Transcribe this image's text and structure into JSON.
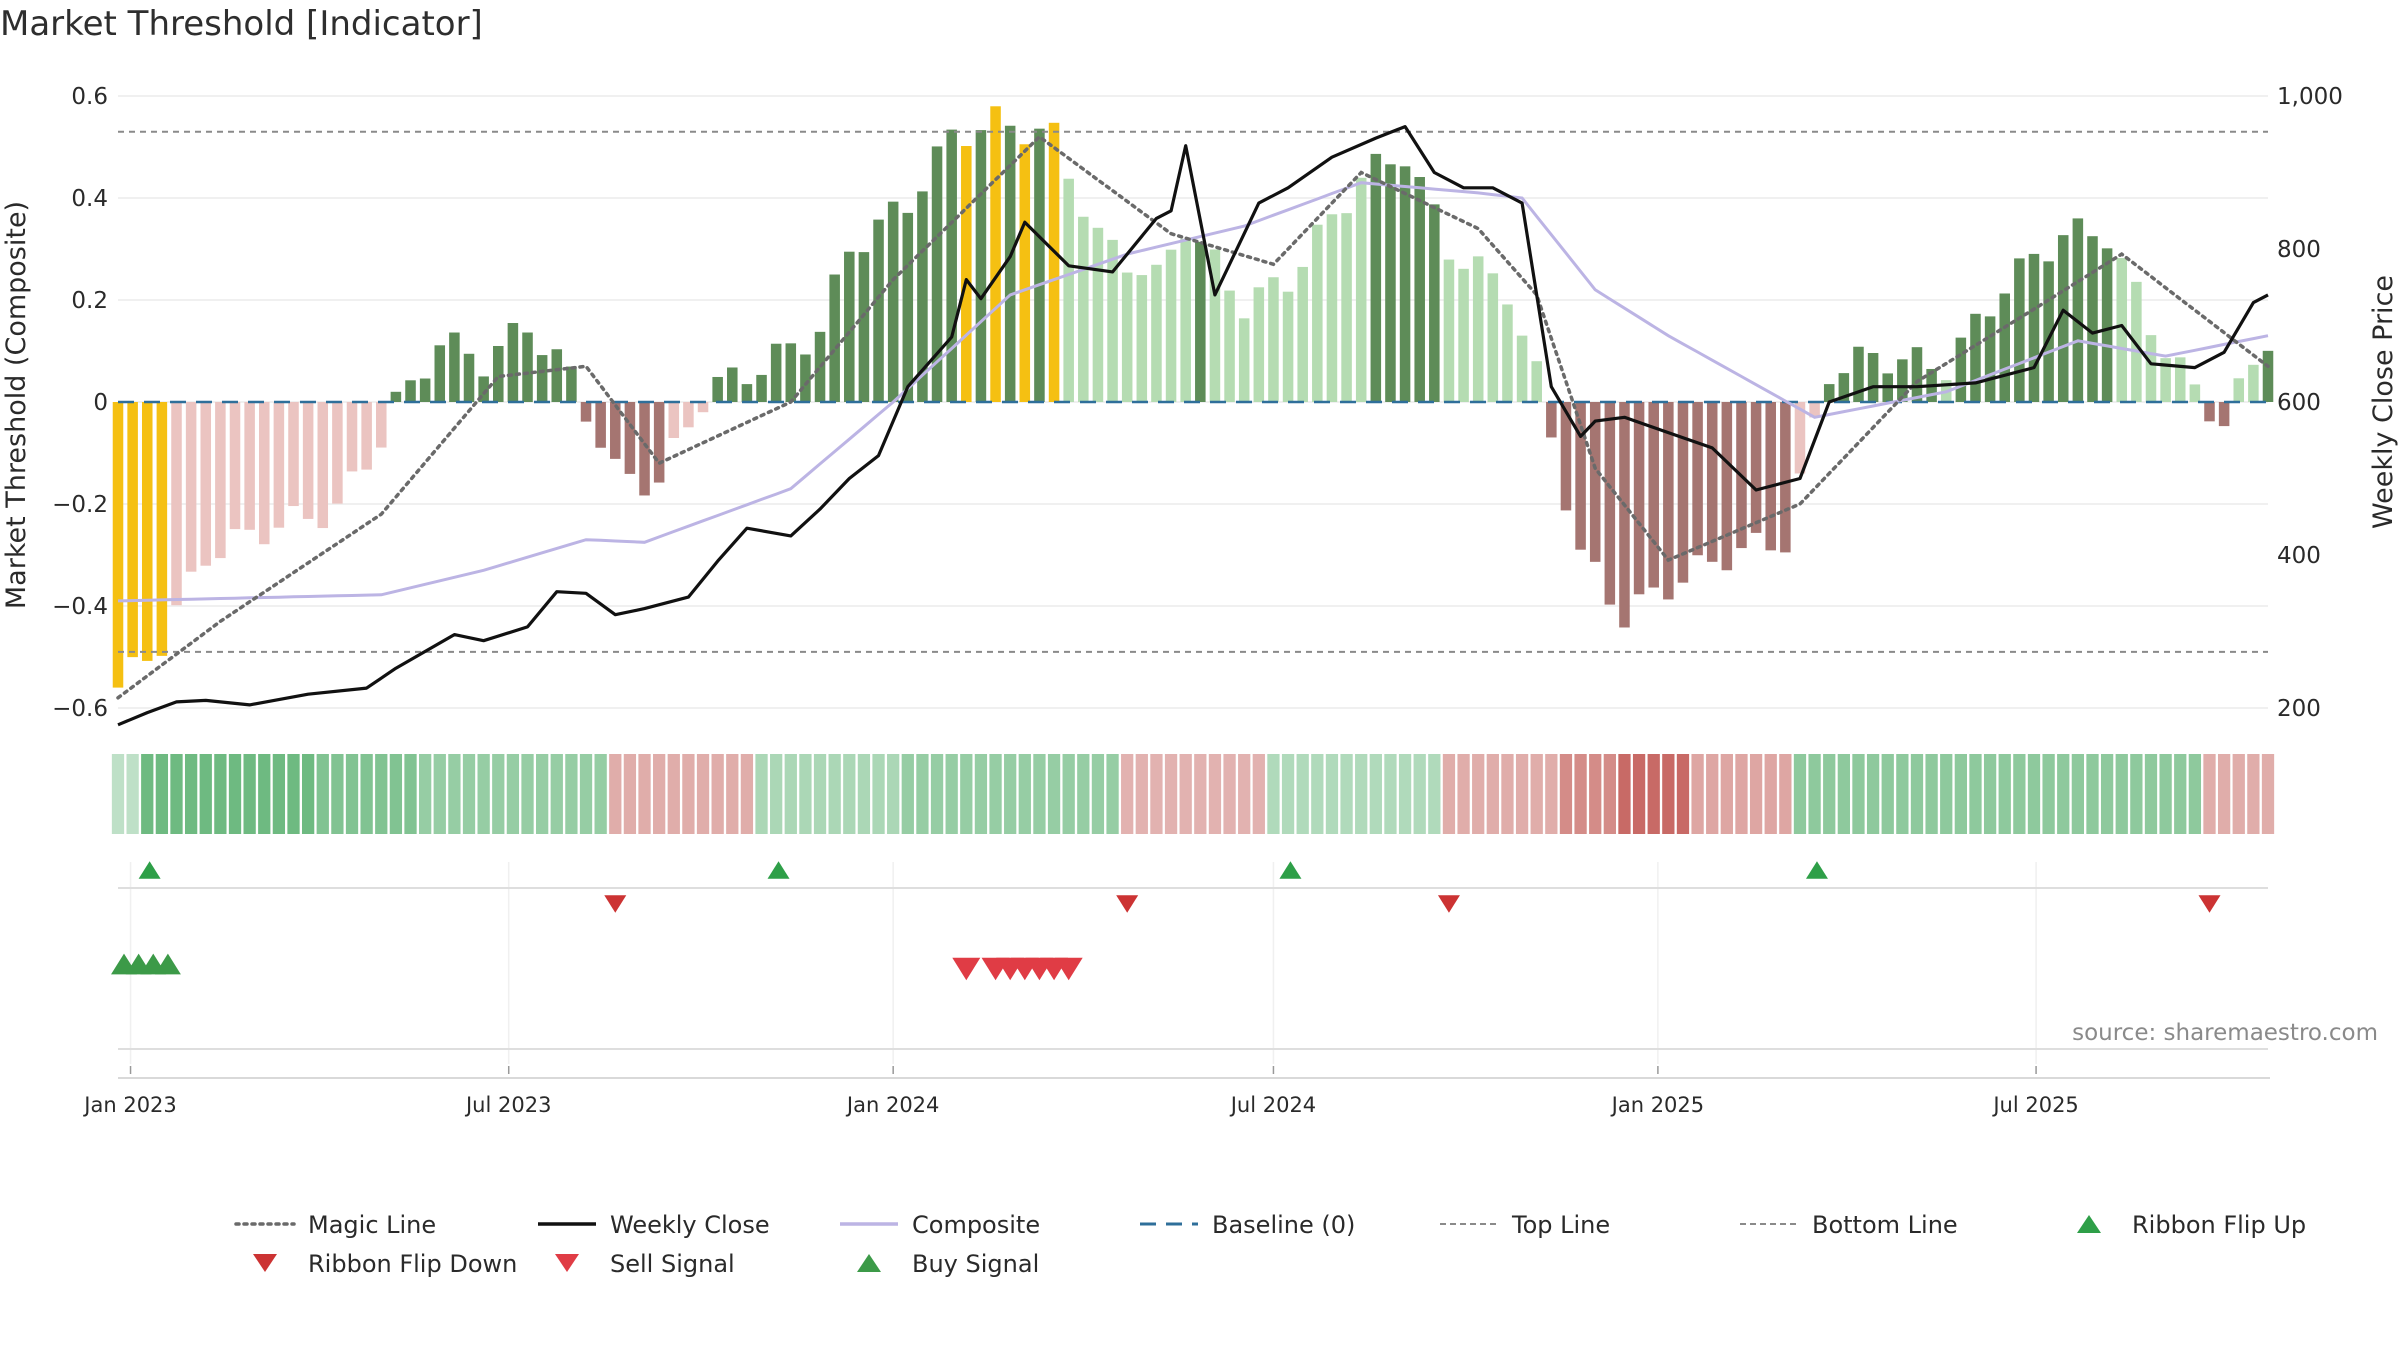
{
  "page": {
    "title": "Market Threshold [Indicator]"
  },
  "chart_data": {
    "type": "bar",
    "title": "Market Threshold [Indicator]",
    "source": "source: sharemaestro.com",
    "ylabel_left": "Market Threshold (Composite)",
    "ylabel_right": "Weekly Close Price",
    "ylim_left": [
      -0.6,
      0.6
    ],
    "ylim_right": [
      200,
      1000
    ],
    "y_ticks_left": [
      "0.6",
      "0.4",
      "0.2",
      "0",
      "−0.2",
      "−0.4",
      "−0.6"
    ],
    "y_ticks_right": [
      "1,000",
      "800",
      "600",
      "400",
      "200"
    ],
    "x_ticks": [
      "Jan 2023",
      "Jul 2023",
      "Jan 2024",
      "Jul 2024",
      "Jan 2025",
      "Jul 2025"
    ],
    "x_range": [
      "2022-12-26",
      "2025-10-20"
    ],
    "grid": true,
    "legend_position": "bottom",
    "colors": {
      "bar_strong_pos": "#5e8c58",
      "bar_weak_pos": "#b5dcb2",
      "bar_strong_neg": "#a57571",
      "bar_weak_neg": "#ebc4c1",
      "extreme": "#f5c012",
      "weekly_close": "#111111",
      "composite": "#bcb4e4",
      "magic_line": "#6a6a6a",
      "baseline": "#2f6f9a",
      "threshold_lines": "#8a8a8a",
      "ribbon_flip_up": "#2e9f48",
      "ribbon_flip_down": "#cc3333",
      "sell_signal": "#e03c45",
      "buy_signal": "#3c9a48"
    },
    "threshold_lines": {
      "top": 0.53,
      "bottom": -0.49,
      "baseline": 0
    },
    "legend": [
      {
        "label": "Magic Line",
        "style": "dotted",
        "color": "#6a6a6a"
      },
      {
        "label": "Weekly Close",
        "style": "solid",
        "color": "#111111"
      },
      {
        "label": "Composite",
        "style": "solid",
        "color": "#bcb4e4"
      },
      {
        "label": "Baseline (0)",
        "style": "dashed",
        "color": "#2f6f9a"
      },
      {
        "label": "Top Line",
        "style": "dashed-thin",
        "color": "#8a8a8a"
      },
      {
        "label": "Bottom Line",
        "style": "dashed-thin",
        "color": "#8a8a8a"
      },
      {
        "label": "Ribbon Flip Up",
        "style": "triangle-up",
        "color": "#2e9f48"
      },
      {
        "label": "Ribbon Flip Down",
        "style": "triangle-down",
        "color": "#cc3333"
      },
      {
        "label": "Sell Signal",
        "style": "triangle-down",
        "color": "#e03c45"
      },
      {
        "label": "Buy Signal",
        "style": "triangle-up",
        "color": "#3c9a48"
      }
    ],
    "ribbon_flip_up_dates": [
      "2023-01-02",
      "2023-10-30",
      "2024-07-01",
      "2025-03-10"
    ],
    "ribbon_flip_down_dates": [
      "2023-08-21",
      "2024-04-22",
      "2024-09-23",
      "2025-09-22"
    ],
    "buy_signal_dates": [
      "2022-12-26",
      "2023-01-02",
      "2023-01-09",
      "2023-01-16"
    ],
    "sell_signal_dates": [
      "2024-02-05",
      "2024-02-19",
      "2024-02-26",
      "2024-03-04",
      "2024-03-11",
      "2024-03-18",
      "2024-03-25"
    ],
    "weekly_close_anchors": [
      [
        "2022-12-26",
        178
      ],
      [
        "2023-01-09",
        194
      ],
      [
        "2023-01-23",
        208
      ],
      [
        "2023-02-06",
        210
      ],
      [
        "2023-02-27",
        204
      ],
      [
        "2023-03-27",
        218
      ],
      [
        "2023-04-24",
        226
      ],
      [
        "2023-05-08",
        252
      ],
      [
        "2023-06-05",
        296
      ],
      [
        "2023-06-19",
        288
      ],
      [
        "2023-07-10",
        306
      ],
      [
        "2023-07-24",
        352
      ],
      [
        "2023-08-07",
        350
      ],
      [
        "2023-08-21",
        322
      ],
      [
        "2023-09-04",
        330
      ],
      [
        "2023-09-25",
        345
      ],
      [
        "2023-10-09",
        392
      ],
      [
        "2023-10-23",
        435
      ],
      [
        "2023-11-13",
        425
      ],
      [
        "2023-11-27",
        460
      ],
      [
        "2023-12-11",
        500
      ],
      [
        "2023-12-25",
        530
      ],
      [
        "2024-01-08",
        620
      ],
      [
        "2024-01-29",
        685
      ],
      [
        "2024-02-05",
        760
      ],
      [
        "2024-02-12",
        735
      ],
      [
        "2024-02-26",
        790
      ],
      [
        "2024-03-04",
        835
      ],
      [
        "2024-03-25",
        778
      ],
      [
        "2024-04-15",
        770
      ],
      [
        "2024-05-06",
        840
      ],
      [
        "2024-05-13",
        850
      ],
      [
        "2024-05-20",
        935
      ],
      [
        "2024-06-03",
        740
      ],
      [
        "2024-06-24",
        860
      ],
      [
        "2024-07-08",
        880
      ],
      [
        "2024-07-29",
        920
      ],
      [
        "2024-08-19",
        945
      ],
      [
        "2024-09-02",
        960
      ],
      [
        "2024-09-16",
        900
      ],
      [
        "2024-09-30",
        880
      ],
      [
        "2024-10-14",
        880
      ],
      [
        "2024-10-28",
        860
      ],
      [
        "2024-11-11",
        620
      ],
      [
        "2024-11-25",
        555
      ],
      [
        "2024-12-02",
        575
      ],
      [
        "2024-12-16",
        580
      ],
      [
        "2025-01-06",
        560
      ],
      [
        "2025-01-27",
        540
      ],
      [
        "2025-02-17",
        485
      ],
      [
        "2025-03-10",
        500
      ],
      [
        "2025-03-24",
        600
      ],
      [
        "2025-04-14",
        620
      ],
      [
        "2025-05-05",
        620
      ],
      [
        "2025-06-02",
        625
      ],
      [
        "2025-06-30",
        645
      ],
      [
        "2025-07-14",
        720
      ],
      [
        "2025-07-28",
        690
      ],
      [
        "2025-08-11",
        700
      ],
      [
        "2025-08-25",
        650
      ],
      [
        "2025-09-15",
        645
      ],
      [
        "2025-09-29",
        665
      ],
      [
        "2025-10-13",
        730
      ],
      [
        "2025-10-20",
        740
      ]
    ],
    "composite_anchors": [
      [
        "2022-12-26",
        -0.39
      ],
      [
        "2023-05-01",
        -0.378
      ],
      [
        "2023-06-19",
        -0.33
      ],
      [
        "2023-08-07",
        -0.27
      ],
      [
        "2023-09-04",
        -0.275
      ],
      [
        "2023-11-13",
        -0.17
      ],
      [
        "2024-01-01",
        0.0
      ],
      [
        "2024-02-26",
        0.21
      ],
      [
        "2024-04-22",
        0.29
      ],
      [
        "2024-06-17",
        0.345
      ],
      [
        "2024-08-12",
        0.43
      ],
      [
        "2024-10-07",
        0.41
      ],
      [
        "2024-10-28",
        0.4
      ],
      [
        "2024-12-02",
        0.22
      ],
      [
        "2025-01-06",
        0.13
      ],
      [
        "2025-03-17",
        -0.03
      ],
      [
        "2025-05-19",
        0.02
      ],
      [
        "2025-07-21",
        0.12
      ],
      [
        "2025-09-01",
        0.09
      ],
      [
        "2025-10-20",
        0.13
      ]
    ],
    "magic_line_anchors": [
      [
        "2022-12-26",
        -0.58
      ],
      [
        "2023-02-13",
        -0.43
      ],
      [
        "2023-05-01",
        -0.22
      ],
      [
        "2023-06-26",
        0.05
      ],
      [
        "2023-08-07",
        0.07
      ],
      [
        "2023-09-11",
        -0.12
      ],
      [
        "2023-11-13",
        0.0
      ],
      [
        "2024-01-01",
        0.24
      ],
      [
        "2024-03-11",
        0.52
      ],
      [
        "2024-05-13",
        0.33
      ],
      [
        "2024-07-01",
        0.27
      ],
      [
        "2024-08-12",
        0.45
      ],
      [
        "2024-10-07",
        0.34
      ],
      [
        "2024-11-04",
        0.21
      ],
      [
        "2024-12-02",
        -0.13
      ],
      [
        "2025-01-06",
        -0.31
      ],
      [
        "2025-03-10",
        -0.2
      ],
      [
        "2025-05-05",
        0.04
      ],
      [
        "2025-07-07",
        0.2
      ],
      [
        "2025-08-11",
        0.29
      ],
      [
        "2025-10-20",
        0.07
      ]
    ],
    "ribbon_segments": [
      [
        "2022-12-26",
        0.15
      ],
      [
        "2023-01-09",
        0.75
      ],
      [
        "2023-04-03",
        0.6
      ],
      [
        "2023-05-22",
        0.45
      ],
      [
        "2023-08-21",
        -0.3
      ],
      [
        "2023-10-30",
        0.3
      ],
      [
        "2024-01-08",
        0.45
      ],
      [
        "2024-04-22",
        -0.25
      ],
      [
        "2024-07-01",
        0.25
      ],
      [
        "2024-09-23",
        -0.3
      ],
      [
        "2024-11-18",
        -0.55
      ],
      [
        "2024-12-16",
        -0.8
      ],
      [
        "2025-01-20",
        -0.35
      ],
      [
        "2025-03-10",
        0.5
      ],
      [
        "2025-09-22",
        -0.3
      ]
    ]
  }
}
